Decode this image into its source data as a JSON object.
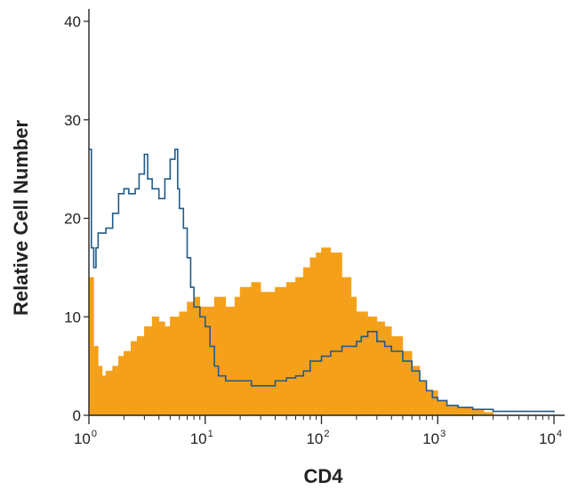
{
  "chart_data": {
    "type": "histogram",
    "xlabel": "CD4",
    "ylabel": "Relative Cell Number",
    "xscale": "log",
    "xlim": [
      1,
      10000
    ],
    "ylim": [
      0,
      40
    ],
    "y_ticks": [
      {
        "value": 0,
        "label": "0"
      },
      {
        "value": 10,
        "label": "10"
      },
      {
        "value": 20,
        "label": "20"
      },
      {
        "value": 30,
        "label": "30"
      },
      {
        "value": 40,
        "label": "40"
      }
    ],
    "x_ticks": [
      {
        "value": 1,
        "base": "10",
        "exp": "0"
      },
      {
        "value": 10,
        "base": "10",
        "exp": "1"
      },
      {
        "value": 100,
        "base": "10",
        "exp": "2"
      },
      {
        "value": 1000,
        "base": "10",
        "exp": "3"
      },
      {
        "value": 10000,
        "base": "10",
        "exp": "4"
      }
    ],
    "grid": false,
    "series": [
      {
        "style": "filled",
        "color": "#f5a01a",
        "points": [
          [
            1.0,
            14
          ],
          [
            1.1,
            7
          ],
          [
            1.2,
            5
          ],
          [
            1.3,
            4
          ],
          [
            1.4,
            4.5
          ],
          [
            1.6,
            5
          ],
          [
            1.8,
            6
          ],
          [
            2.0,
            6.5
          ],
          [
            2.3,
            7.5
          ],
          [
            2.6,
            8
          ],
          [
            3.0,
            9
          ],
          [
            3.5,
            10
          ],
          [
            4.0,
            9.5
          ],
          [
            4.5,
            9
          ],
          [
            5.0,
            10
          ],
          [
            6.0,
            10.5
          ],
          [
            7.0,
            11.5
          ],
          [
            8.0,
            12
          ],
          [
            9.0,
            11
          ],
          [
            10.0,
            11
          ],
          [
            12.0,
            12
          ],
          [
            15.0,
            11
          ],
          [
            18.0,
            12
          ],
          [
            20.0,
            13
          ],
          [
            25.0,
            13.5
          ],
          [
            30.0,
            12.5
          ],
          [
            40.0,
            13
          ],
          [
            50.0,
            13.5
          ],
          [
            60.0,
            14
          ],
          [
            70.0,
            15
          ],
          [
            80.0,
            16
          ],
          [
            90.0,
            16.5
          ],
          [
            100.0,
            17
          ],
          [
            120.0,
            16.5
          ],
          [
            150.0,
            14
          ],
          [
            180.0,
            12
          ],
          [
            200.0,
            10.5
          ],
          [
            250.0,
            10
          ],
          [
            300.0,
            9.5
          ],
          [
            350.0,
            9
          ],
          [
            400.0,
            8
          ],
          [
            500.0,
            6.5
          ],
          [
            600.0,
            5
          ],
          [
            700.0,
            3.5
          ],
          [
            800.0,
            2.5
          ],
          [
            1000.0,
            1.5
          ],
          [
            1200.0,
            1
          ],
          [
            1500.0,
            0.8
          ],
          [
            2000.0,
            0.5
          ],
          [
            2500.0,
            0.3
          ],
          [
            3000.0,
            0
          ]
        ]
      },
      {
        "style": "outline",
        "color": "#1f5b8a",
        "points": [
          [
            1.0,
            27
          ],
          [
            1.05,
            17
          ],
          [
            1.1,
            15
          ],
          [
            1.15,
            17
          ],
          [
            1.2,
            18.5
          ],
          [
            1.4,
            19
          ],
          [
            1.6,
            20.5
          ],
          [
            1.8,
            22.5
          ],
          [
            2.0,
            23
          ],
          [
            2.2,
            22.5
          ],
          [
            2.5,
            23
          ],
          [
            2.7,
            24.5
          ],
          [
            3.0,
            26.5
          ],
          [
            3.2,
            24
          ],
          [
            3.5,
            23
          ],
          [
            4.0,
            22
          ],
          [
            4.5,
            24
          ],
          [
            5.0,
            26
          ],
          [
            5.5,
            27
          ],
          [
            5.8,
            23
          ],
          [
            6.0,
            21
          ],
          [
            6.5,
            19
          ],
          [
            7.0,
            16
          ],
          [
            7.5,
            13
          ],
          [
            8.0,
            11
          ],
          [
            9.0,
            10
          ],
          [
            10.0,
            9
          ],
          [
            11.0,
            7
          ],
          [
            12.0,
            5
          ],
          [
            13.0,
            4
          ],
          [
            15.0,
            3.5
          ],
          [
            20.0,
            3.5
          ],
          [
            25.0,
            3
          ],
          [
            30.0,
            3
          ],
          [
            40.0,
            3.5
          ],
          [
            50.0,
            3.8
          ],
          [
            60.0,
            4
          ],
          [
            70.0,
            4.5
          ],
          [
            80.0,
            5.5
          ],
          [
            100.0,
            6
          ],
          [
            120.0,
            6.5
          ],
          [
            150.0,
            7
          ],
          [
            180.0,
            7
          ],
          [
            200.0,
            7.5
          ],
          [
            220.0,
            8
          ],
          [
            250.0,
            8.5
          ],
          [
            300.0,
            7.5
          ],
          [
            350.0,
            7
          ],
          [
            400.0,
            6.5
          ],
          [
            500.0,
            5.5
          ],
          [
            600.0,
            4.5
          ],
          [
            700.0,
            3.5
          ],
          [
            800.0,
            2.5
          ],
          [
            900.0,
            1.8
          ],
          [
            1000.0,
            1.5
          ],
          [
            1200.0,
            1
          ],
          [
            1500.0,
            0.8
          ],
          [
            2000.0,
            0.6
          ],
          [
            3000.0,
            0.4
          ],
          [
            5000.0,
            0.4
          ],
          [
            10000.0,
            0.3
          ]
        ]
      }
    ]
  }
}
